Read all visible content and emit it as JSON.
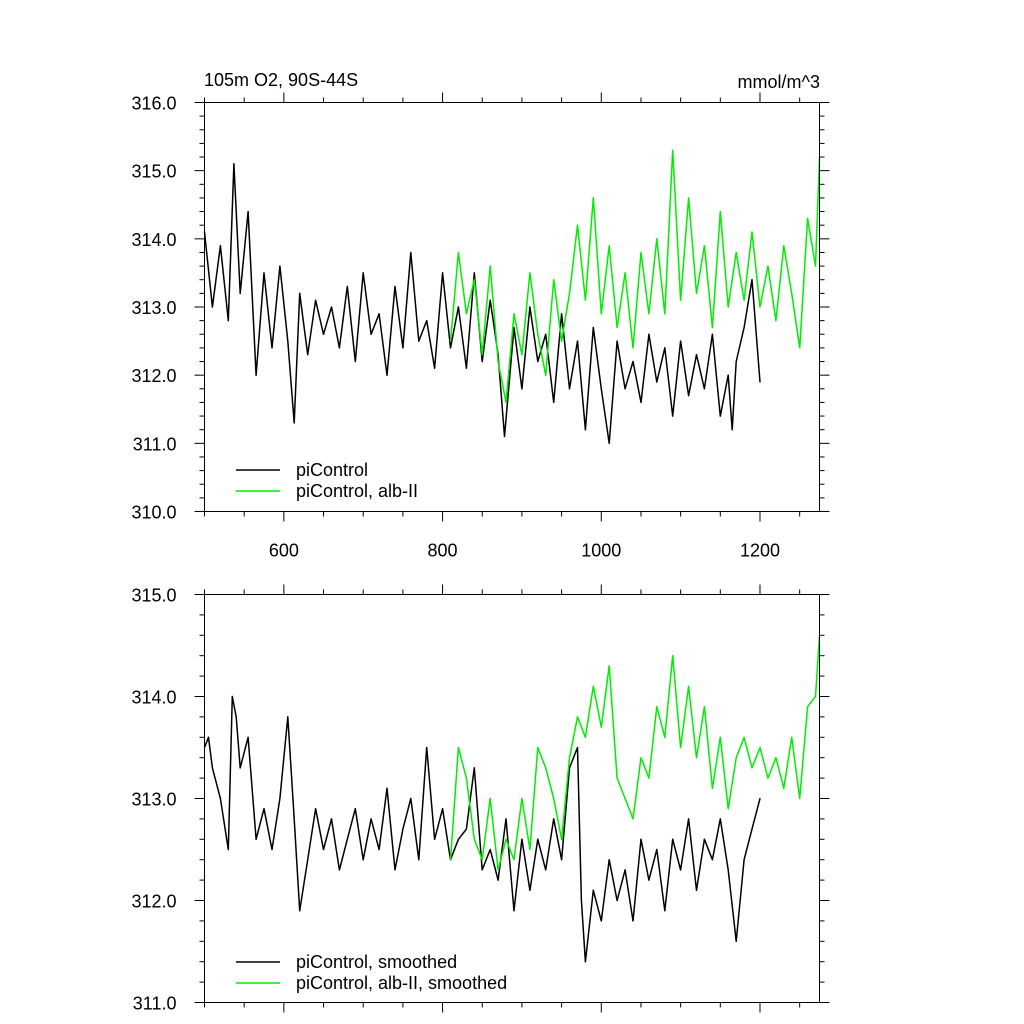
{
  "chart_data": [
    {
      "type": "line",
      "title": "105m O2, 90S-44S",
      "units": "mmol/m^3",
      "xlim": [
        500,
        1275
      ],
      "ylim": [
        310.0,
        316.0
      ],
      "x_ticks": [
        600,
        800,
        1000,
        1200
      ],
      "x_tick_labels": [
        "600",
        "800",
        "1000",
        "1200"
      ],
      "y_ticks": [
        310.0,
        311.0,
        312.0,
        313.0,
        314.0,
        315.0,
        316.0
      ],
      "y_tick_labels": [
        "310.0",
        "311.0",
        "312.0",
        "313.0",
        "314.0",
        "315.0",
        "316.0"
      ],
      "legend_position": "bottom-left",
      "series": [
        {
          "name": "piControl",
          "color": "#000000",
          "x": [
            500,
            510,
            520,
            530,
            537,
            545,
            555,
            565,
            575,
            585,
            595,
            605,
            613,
            620,
            630,
            640,
            650,
            660,
            670,
            680,
            690,
            700,
            710,
            720,
            730,
            740,
            750,
            760,
            770,
            780,
            790,
            800,
            810,
            820,
            830,
            840,
            850,
            860,
            870,
            878,
            890,
            900,
            910,
            920,
            930,
            940,
            950,
            960,
            970,
            980,
            990,
            1000,
            1010,
            1020,
            1030,
            1040,
            1050,
            1060,
            1070,
            1080,
            1090,
            1100,
            1110,
            1120,
            1130,
            1140,
            1150,
            1160,
            1165,
            1170,
            1180,
            1190,
            1200
          ],
          "y": [
            314.1,
            313.0,
            313.9,
            312.8,
            315.1,
            313.2,
            314.4,
            312.0,
            313.5,
            312.4,
            313.6,
            312.5,
            311.3,
            313.2,
            312.3,
            313.1,
            312.6,
            313.0,
            312.4,
            313.3,
            312.2,
            313.5,
            312.6,
            312.9,
            312.0,
            313.3,
            312.4,
            313.8,
            312.5,
            312.8,
            312.1,
            313.5,
            312.4,
            313.0,
            312.1,
            313.5,
            312.2,
            313.1,
            312.3,
            311.1,
            312.7,
            311.8,
            313.0,
            312.2,
            312.6,
            311.6,
            312.9,
            311.8,
            312.5,
            311.2,
            312.7,
            311.8,
            311.0,
            312.5,
            311.8,
            312.2,
            311.6,
            312.6,
            311.9,
            312.4,
            311.4,
            312.5,
            311.7,
            312.3,
            311.8,
            312.6,
            311.4,
            312.0,
            311.2,
            312.2,
            312.7,
            313.4,
            311.9
          ]
        },
        {
          "name": "piControl, alb-II",
          "color": "#00ee00",
          "x": [
            810,
            820,
            830,
            840,
            850,
            860,
            870,
            880,
            890,
            900,
            910,
            920,
            930,
            940,
            950,
            960,
            970,
            980,
            990,
            1000,
            1010,
            1020,
            1030,
            1040,
            1050,
            1060,
            1070,
            1080,
            1090,
            1100,
            1110,
            1120,
            1130,
            1140,
            1150,
            1160,
            1170,
            1180,
            1190,
            1200,
            1210,
            1220,
            1230,
            1240,
            1250,
            1260,
            1270,
            1275
          ],
          "y": [
            312.5,
            313.8,
            312.9,
            313.4,
            312.3,
            313.6,
            312.2,
            311.6,
            312.9,
            312.3,
            313.5,
            312.6,
            312.0,
            313.4,
            312.5,
            313.2,
            314.2,
            313.1,
            314.6,
            312.9,
            313.9,
            312.7,
            313.5,
            312.4,
            313.8,
            312.9,
            314.0,
            312.9,
            315.3,
            313.1,
            314.6,
            313.2,
            313.9,
            312.7,
            314.4,
            313.0,
            313.8,
            313.1,
            314.1,
            313.0,
            313.6,
            312.8,
            313.9,
            313.2,
            312.4,
            314.3,
            313.6,
            315.2
          ]
        }
      ]
    },
    {
      "type": "line",
      "title": "",
      "xlim": [
        500,
        1275
      ],
      "ylim": [
        311.0,
        315.0
      ],
      "x_ticks": [
        600,
        800,
        1000,
        1200
      ],
      "x_tick_labels": [],
      "y_ticks": [
        311.0,
        312.0,
        313.0,
        314.0,
        315.0
      ],
      "y_tick_labels": [
        "311.0",
        "312.0",
        "313.0",
        "314.0",
        "315.0"
      ],
      "legend_position": "bottom-left",
      "series": [
        {
          "name": "piControl, smoothed",
          "color": "#000000",
          "x": [
            500,
            505,
            510,
            520,
            530,
            535,
            540,
            545,
            555,
            565,
            575,
            585,
            595,
            605,
            613,
            620,
            630,
            640,
            650,
            660,
            670,
            680,
            690,
            700,
            710,
            720,
            730,
            740,
            750,
            760,
            770,
            780,
            790,
            800,
            810,
            820,
            830,
            840,
            850,
            860,
            870,
            880,
            890,
            900,
            910,
            920,
            930,
            940,
            950,
            960,
            970,
            975,
            980,
            990,
            1000,
            1010,
            1020,
            1030,
            1040,
            1050,
            1060,
            1070,
            1080,
            1090,
            1100,
            1110,
            1120,
            1130,
            1140,
            1150,
            1160,
            1170,
            1180,
            1190,
            1200
          ],
          "y": [
            313.5,
            313.6,
            313.3,
            313.0,
            312.5,
            314.0,
            313.8,
            313.3,
            313.6,
            312.6,
            312.9,
            312.5,
            313.0,
            313.8,
            312.8,
            311.9,
            312.4,
            312.9,
            312.5,
            312.8,
            312.3,
            312.6,
            312.9,
            312.4,
            312.8,
            312.5,
            313.1,
            312.3,
            312.7,
            313.0,
            312.4,
            313.5,
            312.6,
            312.9,
            312.4,
            312.6,
            312.7,
            313.3,
            312.3,
            312.5,
            312.2,
            312.8,
            311.9,
            312.6,
            312.1,
            312.6,
            312.3,
            312.8,
            312.4,
            313.3,
            313.5,
            312.0,
            311.4,
            312.1,
            311.8,
            312.4,
            312.0,
            312.3,
            311.8,
            312.6,
            312.2,
            312.5,
            311.9,
            312.6,
            312.3,
            312.8,
            312.1,
            312.6,
            312.4,
            312.8,
            312.3,
            311.6,
            312.4,
            312.7,
            313.0
          ]
        },
        {
          "name": "piControl, alb-II, smoothed",
          "color": "#00ee00",
          "x": [
            810,
            820,
            830,
            840,
            850,
            860,
            870,
            880,
            890,
            900,
            910,
            920,
            930,
            940,
            950,
            960,
            970,
            980,
            990,
            1000,
            1010,
            1020,
            1030,
            1040,
            1050,
            1060,
            1070,
            1080,
            1090,
            1100,
            1110,
            1120,
            1130,
            1140,
            1150,
            1160,
            1170,
            1180,
            1190,
            1200,
            1210,
            1220,
            1230,
            1240,
            1250,
            1260,
            1270,
            1275
          ],
          "y": [
            312.4,
            313.5,
            313.2,
            312.6,
            312.4,
            313.0,
            312.3,
            312.6,
            312.4,
            313.0,
            312.5,
            313.5,
            313.3,
            313.0,
            312.6,
            313.4,
            313.8,
            313.6,
            314.1,
            313.7,
            314.3,
            313.2,
            313.0,
            312.8,
            313.4,
            313.2,
            313.9,
            313.6,
            314.4,
            313.5,
            314.1,
            313.4,
            313.9,
            313.1,
            313.6,
            312.9,
            313.4,
            313.6,
            313.3,
            313.5,
            313.2,
            313.4,
            313.1,
            313.6,
            313.0,
            313.9,
            314.0,
            314.6
          ]
        }
      ]
    }
  ]
}
